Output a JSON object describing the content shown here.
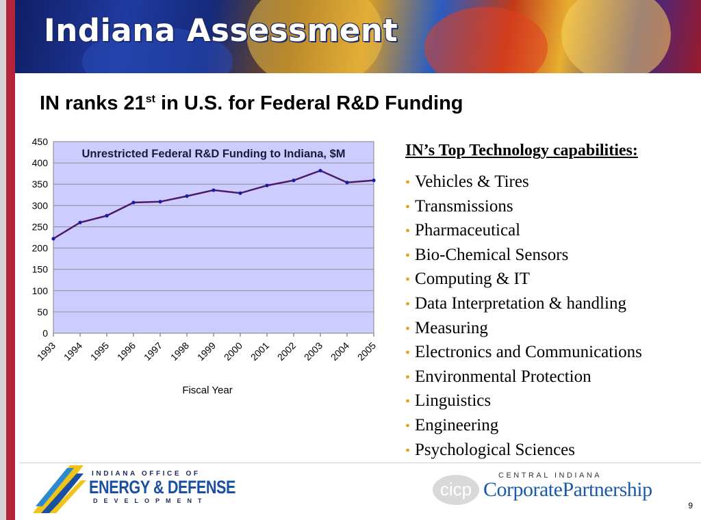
{
  "slide": {
    "title": "Indiana Assessment",
    "subtitle_pre": "IN ranks 21",
    "subtitle_sup": "st",
    "subtitle_post": " in U.S. for Federal R&D Funding",
    "page_number": "9"
  },
  "capabilities": {
    "title": "IN’s Top Technology capabilities:",
    "items": [
      "Vehicles & Tires",
      "Transmissions",
      "Pharmaceutical",
      "Bio-Chemical Sensors",
      "Computing & IT",
      "Data Interpretation & handling",
      "Measuring",
      "Electronics and Communications",
      "Environmental Protection",
      "Linguistics",
      "Engineering",
      "Psychological Sciences"
    ]
  },
  "logos": {
    "left_line1": "INDIANA OFFICE OF",
    "left_line2": "ENERGY & DEFENSE",
    "left_line3": "DEVELOPMENT",
    "right_line1": "CENTRAL INDIANA",
    "right_line2": "CorporatePartnership",
    "right_mark": "cicp"
  },
  "colors": {
    "plot_bg": "#ccccff",
    "line": "#4b1a6a",
    "marker": "#1a1aa8",
    "bullet": "#e3a21a",
    "accent_strip": "#b3243a",
    "title_text": "#ffffff"
  },
  "chart_data": {
    "type": "line",
    "title": "Unrestricted Federal R&D Funding to Indiana, $M",
    "xlabel": "Fiscal Year",
    "ylabel": "",
    "ylim": [
      0,
      450
    ],
    "yticks": [
      0,
      50,
      100,
      150,
      200,
      250,
      300,
      350,
      400,
      450
    ],
    "categories": [
      "1993",
      "1994",
      "1995",
      "1996",
      "1997",
      "1998",
      "1999",
      "2000",
      "2001",
      "2002",
      "2003",
      "2004",
      "2005"
    ],
    "values": [
      222,
      260,
      276,
      307,
      309,
      322,
      336,
      329,
      347,
      359,
      382,
      354,
      359
    ],
    "grid": true,
    "legend": "none"
  }
}
